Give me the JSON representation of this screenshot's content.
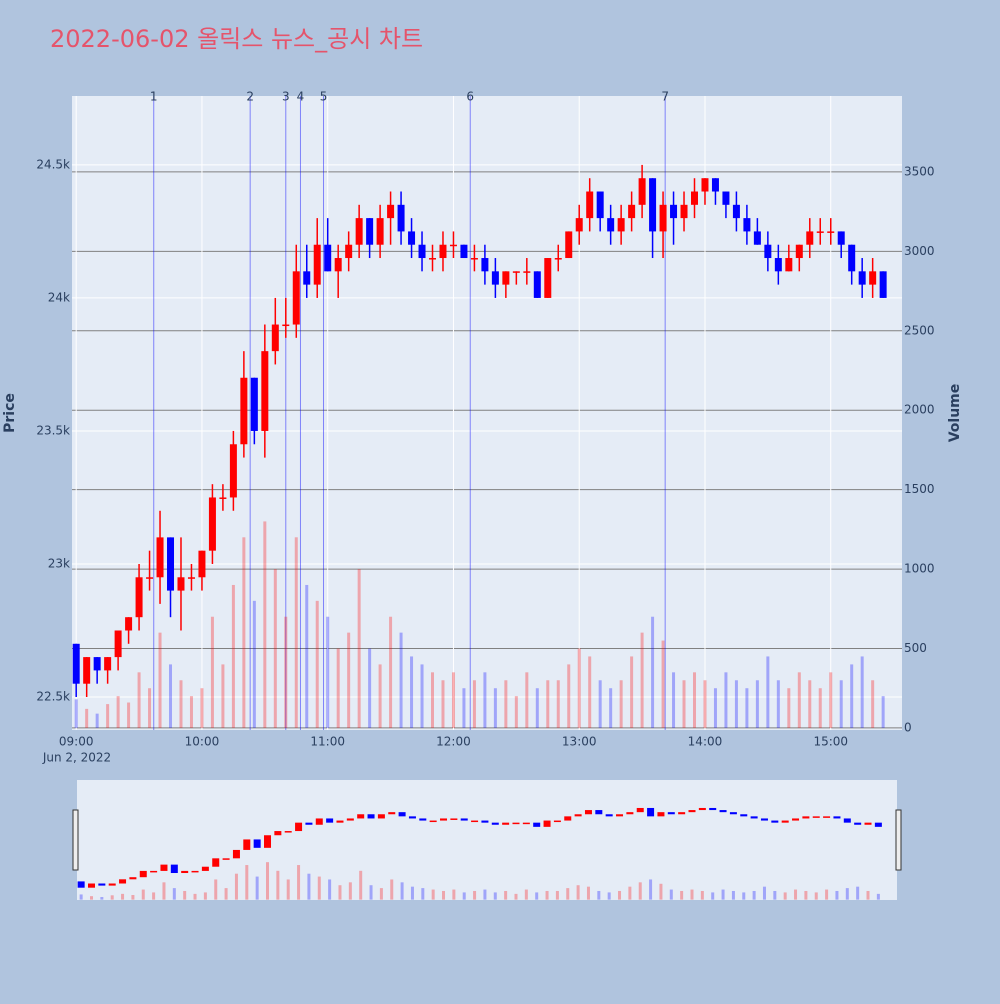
{
  "chart_data": {
    "type": "candlestick",
    "title": "2022-06-02 올릭스 뉴스_공시 차트",
    "x_subtitle": "Jun 2, 2022",
    "y_title": "Price",
    "y2_title": "Volume",
    "increasing_color": "#ff0000",
    "decreasing_color": "#0000ff",
    "xlim": [
      "08:58",
      "15:34"
    ],
    "xticks": [
      "09:00",
      "10:00",
      "11:00",
      "12:00",
      "13:00",
      "14:00",
      "15:00"
    ],
    "ylim": [
      22376,
      24759
    ],
    "yticks": [
      {
        "value": 22500,
        "label": "22.5k"
      },
      {
        "value": 23000,
        "label": "23k"
      },
      {
        "value": 23500,
        "label": "23.5k"
      },
      {
        "value": 24000,
        "label": "24k"
      },
      {
        "value": 24500,
        "label": "24.5k"
      }
    ],
    "y2lim": [
      -13,
      3978
    ],
    "y2ticks": [
      0,
      500,
      1000,
      1500,
      2000,
      2500,
      3000,
      3500
    ],
    "annotations": [
      {
        "x": "09:37",
        "label": "1"
      },
      {
        "x": "10:23",
        "label": "2"
      },
      {
        "x": "10:40",
        "label": "3"
      },
      {
        "x": "10:47",
        "label": "4"
      },
      {
        "x": "10:58",
        "label": "5"
      },
      {
        "x": "12:08",
        "label": "6"
      },
      {
        "x": "13:41",
        "label": "7"
      }
    ],
    "x": [
      "09:00",
      "09:05",
      "09:10",
      "09:15",
      "09:20",
      "09:25",
      "09:30",
      "09:35",
      "09:40",
      "09:45",
      "09:50",
      "09:55",
      "10:00",
      "10:05",
      "10:10",
      "10:15",
      "10:20",
      "10:25",
      "10:30",
      "10:35",
      "10:40",
      "10:45",
      "10:50",
      "10:55",
      "11:00",
      "11:05",
      "11:10",
      "11:15",
      "11:20",
      "11:25",
      "11:30",
      "11:35",
      "11:40",
      "11:45",
      "11:50",
      "11:55",
      "12:00",
      "12:05",
      "12:10",
      "12:15",
      "12:20",
      "12:25",
      "12:30",
      "12:35",
      "12:40",
      "12:45",
      "12:50",
      "12:55",
      "13:00",
      "13:05",
      "13:10",
      "13:15",
      "13:20",
      "13:25",
      "13:30",
      "13:35",
      "13:40",
      "13:45",
      "13:50",
      "13:55",
      "14:00",
      "14:05",
      "14:10",
      "14:15",
      "14:20",
      "14:25",
      "14:30",
      "14:35",
      "14:40",
      "14:45",
      "14:50",
      "14:55",
      "15:00",
      "15:05",
      "15:10",
      "15:15",
      "15:20",
      "15:25"
    ],
    "open": [
      22700,
      22550,
      22650,
      22600,
      22650,
      22750,
      22800,
      22950,
      22950,
      23100,
      22900,
      22950,
      22950,
      23050,
      23250,
      23250,
      23450,
      23700,
      23500,
      23800,
      23900,
      23900,
      24100,
      24050,
      24200,
      24100,
      24150,
      24200,
      24300,
      24200,
      24300,
      24350,
      24250,
      24200,
      24150,
      24150,
      24200,
      24200,
      24150,
      24150,
      24100,
      24050,
      24100,
      24100,
      24100,
      24000,
      24150,
      24150,
      24250,
      24300,
      24400,
      24300,
      24250,
      24300,
      24350,
      24450,
      24250,
      24350,
      24300,
      24350,
      24400,
      24450,
      24400,
      24350,
      24300,
      24250,
      24200,
      24150,
      24100,
      24150,
      24200,
      24250,
      24250,
      24250,
      24200,
      24100,
      24050,
      24100
    ],
    "high": [
      22700,
      22650,
      22650,
      22650,
      22750,
      22800,
      23000,
      23050,
      23200,
      23100,
      23100,
      23000,
      23050,
      23300,
      23300,
      23500,
      23800,
      23700,
      23900,
      24000,
      24000,
      24200,
      24200,
      24300,
      24300,
      24200,
      24250,
      24350,
      24300,
      24350,
      24400,
      24400,
      24300,
      24250,
      24200,
      24250,
      24250,
      24200,
      24200,
      24200,
      24150,
      24100,
      24100,
      24150,
      24100,
      24150,
      24200,
      24250,
      24350,
      24450,
      24400,
      24350,
      24350,
      24400,
      24500,
      24450,
      24400,
      24400,
      24400,
      24450,
      24450,
      24450,
      24400,
      24400,
      24350,
      24300,
      24250,
      24200,
      24200,
      24200,
      24300,
      24300,
      24300,
      24250,
      24200,
      24150,
      24150,
      24100
    ],
    "low": [
      22500,
      22500,
      22550,
      22550,
      22600,
      22700,
      22750,
      22900,
      22850,
      22800,
      22750,
      22900,
      22900,
      23000,
      23200,
      23200,
      23400,
      23450,
      23400,
      23750,
      23850,
      23850,
      24000,
      24000,
      24100,
      24000,
      24100,
      24150,
      24150,
      24150,
      24200,
      24200,
      24150,
      24100,
      24100,
      24100,
      24150,
      24150,
      24100,
      24050,
      24000,
      24000,
      24050,
      24050,
      24000,
      24000,
      24100,
      24150,
      24200,
      24250,
      24250,
      24200,
      24200,
      24250,
      24300,
      24150,
      24150,
      24200,
      24250,
      24300,
      24350,
      24350,
      24300,
      24250,
      24200,
      24200,
      24100,
      24050,
      24100,
      24100,
      24150,
      24200,
      24200,
      24150,
      24050,
      24000,
      24000,
      24000
    ],
    "close": [
      22550,
      22650,
      22600,
      22650,
      22750,
      22800,
      22950,
      22950,
      23100,
      22900,
      22950,
      22950,
      23050,
      23250,
      23250,
      23450,
      23700,
      23500,
      23800,
      23900,
      23900,
      24100,
      24050,
      24200,
      24100,
      24150,
      24200,
      24300,
      24200,
      24300,
      24350,
      24250,
      24200,
      24150,
      24150,
      24200,
      24200,
      24150,
      24150,
      24100,
      24050,
      24100,
      24100,
      24100,
      24000,
      24150,
      24150,
      24250,
      24300,
      24400,
      24300,
      24250,
      24300,
      24350,
      24450,
      24250,
      24350,
      24300,
      24350,
      24400,
      24450,
      24400,
      24350,
      24300,
      24250,
      24200,
      24150,
      24100,
      24150,
      24200,
      24250,
      24250,
      24250,
      24200,
      24100,
      24050,
      24100,
      24000
    ],
    "volume": [
      180,
      120,
      90,
      150,
      200,
      160,
      350,
      250,
      600,
      400,
      300,
      200,
      250,
      700,
      400,
      900,
      1200,
      800,
      1300,
      1000,
      700,
      1200,
      900,
      800,
      700,
      500,
      600,
      1000,
      500,
      400,
      700,
      600,
      450,
      400,
      350,
      300,
      350,
      250,
      300,
      350,
      250,
      300,
      200,
      350,
      250,
      300,
      300,
      400,
      500,
      450,
      300,
      250,
      300,
      450,
      600,
      700,
      550,
      350,
      300,
      350,
      300,
      250,
      350,
      300,
      250,
      300,
      450,
      300,
      250,
      350,
      300,
      250,
      350,
      300,
      400,
      450,
      300,
      200
    ]
  }
}
